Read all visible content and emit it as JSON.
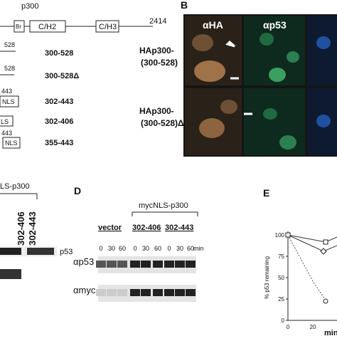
{
  "panel_a": {
    "title": "p300",
    "domains": [
      "Br",
      "C/H2",
      "C/H3"
    ],
    "length": "2414",
    "constructs": [
      {
        "end": "528",
        "label": "300-528"
      },
      {
        "end": "528",
        "label": "300-528Δ"
      },
      {
        "end": "443",
        "box": "NLS",
        "label": "302-443"
      },
      {
        "box": "LS",
        "label": "302-406"
      },
      {
        "end": "443",
        "box": "NLS",
        "label": "355-443"
      }
    ]
  },
  "panel_b": {
    "letter": "B",
    "columns": [
      "αHA",
      "αp53"
    ],
    "rows": [
      [
        "HAp300-",
        "(300-528)"
      ],
      [
        "HAp300-",
        "(300-528)Δ"
      ]
    ]
  },
  "panel_c": {
    "header": "LS-p300",
    "lanes": [
      "302-406",
      "302-443"
    ],
    "band": "p53"
  },
  "panel_d": {
    "letter": "D",
    "group": "mycNLS-p300",
    "lanes": [
      "vector",
      "302-406",
      "302-443"
    ],
    "times": [
      "0",
      "30",
      "60",
      "0",
      "30",
      "60",
      "0",
      "30",
      "60"
    ],
    "unit": "min",
    "blots": [
      "αp53",
      "αmyc"
    ]
  },
  "panel_e": {
    "letter": "E",
    "y_label": "% p53 remaining",
    "yticks": [
      "100",
      "75",
      "50",
      "25",
      "0"
    ],
    "xticks": [
      "0",
      "20"
    ],
    "x_label": "minu"
  }
}
